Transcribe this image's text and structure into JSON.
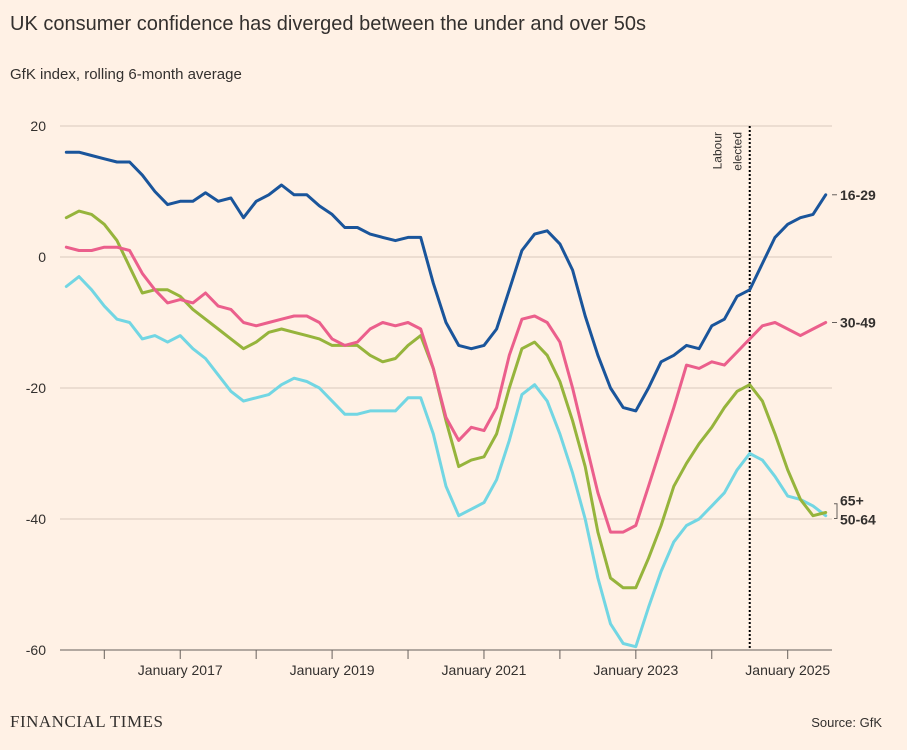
{
  "chart_data": {
    "type": "line",
    "title": "UK consumer confidence has diverged between the under and over 50s",
    "subtitle": "GfK index, rolling 6-month average",
    "source": "Source: GfK",
    "brand": "FINANCIAL TIMES",
    "x": [
      "2015-07",
      "2015-09",
      "2015-11",
      "2016-01",
      "2016-03",
      "2016-05",
      "2016-07",
      "2016-09",
      "2016-11",
      "2017-01",
      "2017-03",
      "2017-05",
      "2017-07",
      "2017-09",
      "2017-11",
      "2018-01",
      "2018-03",
      "2018-05",
      "2018-07",
      "2018-09",
      "2018-11",
      "2019-01",
      "2019-03",
      "2019-05",
      "2019-07",
      "2019-09",
      "2019-11",
      "2020-01",
      "2020-03",
      "2020-05",
      "2020-07",
      "2020-09",
      "2020-11",
      "2021-01",
      "2021-03",
      "2021-05",
      "2021-07",
      "2021-09",
      "2021-11",
      "2022-01",
      "2022-03",
      "2022-05",
      "2022-07",
      "2022-09",
      "2022-11",
      "2023-01",
      "2023-03",
      "2023-05",
      "2023-07",
      "2023-09",
      "2023-11",
      "2024-01",
      "2024-03",
      "2024-05",
      "2024-07",
      "2024-09",
      "2024-11",
      "2025-01",
      "2025-03",
      "2025-05",
      "2025-07"
    ],
    "series": [
      {
        "name": "16-29",
        "color": "#1a559b",
        "values": [
          16,
          16,
          15.5,
          15,
          14.5,
          14.5,
          12.5,
          10,
          8,
          8.5,
          8.5,
          9.8,
          8.5,
          9,
          6,
          8.5,
          9.5,
          11,
          9.5,
          9.5,
          7.8,
          6.5,
          4.5,
          4.5,
          3.5,
          3,
          2.5,
          3,
          3,
          -4,
          -10,
          -13.5,
          -14,
          -13.5,
          -11,
          -5,
          1,
          3.5,
          4,
          2,
          -2,
          -9,
          -15,
          -20,
          -23,
          -23.5,
          -20,
          -16,
          -15,
          -13.5,
          -14,
          -10.5,
          -9.5,
          -6,
          -5,
          -1,
          3,
          5,
          6,
          6.5,
          9.5
        ]
      },
      {
        "name": "30-49",
        "color": "#eb5f8c",
        "values": [
          1.5,
          1,
          1,
          1.5,
          1.5,
          1,
          -2.5,
          -5,
          -7,
          -6.5,
          -7,
          -5.5,
          -7.5,
          -8,
          -10,
          -10.5,
          -10,
          -9.5,
          -9,
          -9,
          -10,
          -12.5,
          -13.5,
          -13,
          -11,
          -10,
          -10.5,
          -10,
          -11,
          -17,
          -24.5,
          -28,
          -26,
          -26.5,
          -23,
          -15,
          -9.5,
          -9,
          -10,
          -13,
          -20,
          -28,
          -36,
          -42,
          -42,
          -41,
          -35,
          -29,
          -23,
          -16.5,
          -17,
          -16,
          -16.5,
          -14.5,
          -12.5,
          -10.5,
          -10,
          -11,
          -12,
          -11,
          -10
        ]
      },
      {
        "name": "50-64",
        "color": "#96b43c",
        "values": [
          6,
          7,
          6.5,
          5,
          2.5,
          -1.5,
          -5.5,
          -5,
          -5,
          -6,
          -8,
          -9.5,
          -11,
          -12.5,
          -14,
          -13,
          -11.5,
          -11,
          -11.5,
          -12,
          -12.5,
          -13.5,
          -13.5,
          -13.5,
          -15,
          -16,
          -15.5,
          -13.5,
          -12,
          -17,
          -25,
          -32,
          -31,
          -30.5,
          -27,
          -20,
          -14,
          -13,
          -15,
          -19,
          -25,
          -32,
          -42,
          -49,
          -50.5,
          -50.5,
          -46,
          -41,
          -35,
          -31.5,
          -28.5,
          -26,
          -23,
          -20.5,
          -19.5,
          -22,
          -27,
          -32.5,
          -37,
          -39.5,
          -39
        ]
      },
      {
        "name": "65+",
        "color": "#72d6e3",
        "values": [
          -4.5,
          -3,
          -5,
          -7.5,
          -9.5,
          -10,
          -12.5,
          -12,
          -13,
          -12,
          -14,
          -15.5,
          -18,
          -20.5,
          -22,
          -21.5,
          -21,
          -19.5,
          -18.5,
          -19,
          -20,
          -22,
          -24,
          -24,
          -23.5,
          -23.5,
          -23.5,
          -21.5,
          -21.5,
          -27,
          -35,
          -39.5,
          -38.5,
          -37.5,
          -34,
          -28,
          -21,
          -19.5,
          -22,
          -27,
          -33,
          -40,
          -49,
          -56,
          -59,
          -59.5,
          -53.5,
          -48,
          -43.5,
          -41,
          -40,
          -38,
          -36,
          -32.5,
          -30,
          -31,
          -33.5,
          -36.5,
          -37,
          -38,
          -39.5
        ]
      }
    ],
    "xlim": [
      "2015-06",
      "2025-08"
    ],
    "xticks": [
      {
        "value": "2017-01",
        "label": "January 2017"
      },
      {
        "value": "2019-01",
        "label": "January 2019"
      },
      {
        "value": "2021-01",
        "label": "January 2021"
      },
      {
        "value": "2023-01",
        "label": "January 2023"
      },
      {
        "value": "2025-01",
        "label": "January 2025"
      }
    ],
    "x_minor_ticks": [
      "2016-01",
      "2017-01",
      "2018-01",
      "2019-01",
      "2020-01",
      "2021-01",
      "2022-01",
      "2023-01",
      "2024-01",
      "2025-01"
    ],
    "ylim": [
      -60,
      20
    ],
    "yticks": [
      20,
      0,
      -20,
      -40,
      -60
    ],
    "grid": true,
    "annotation": {
      "x": "2024-07",
      "lines": [
        "Labour",
        "elected"
      ]
    }
  }
}
